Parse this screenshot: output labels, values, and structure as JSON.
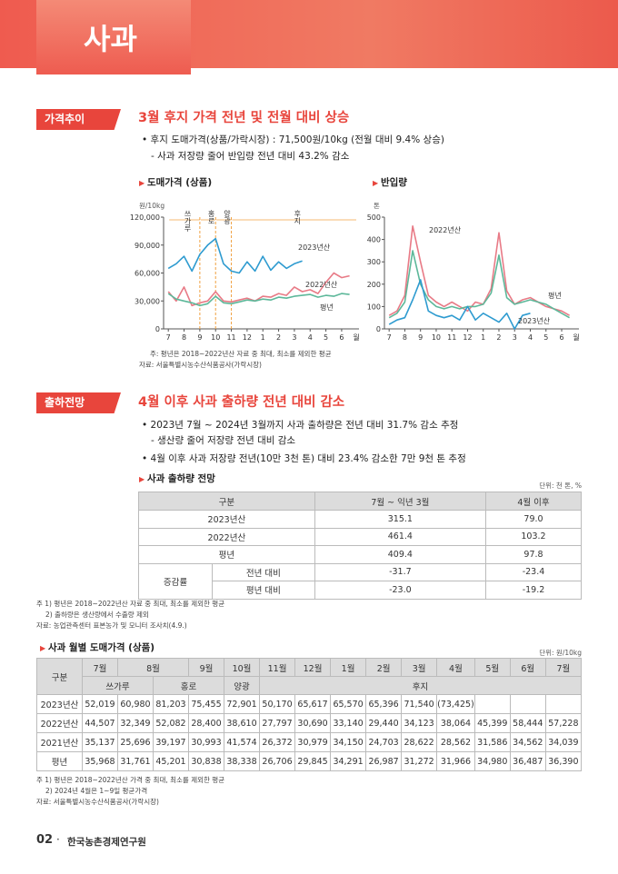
{
  "header": {
    "title": "사과"
  },
  "section1": {
    "badge": "가격추이",
    "heading": "3월 후지 가격 전년 및 전월 대비 상승",
    "bullets": [
      "• 후지 도매가격(상품/가락시장) : 71,500원/10kg (전월 대비 9.4% 상승)",
      "- 사과 저장량 줄어 반입량 전년 대비 43.2% 감소"
    ]
  },
  "charts": [
    {
      "type": "line",
      "title": "도매가격 (상품)",
      "y_unit": "원/10kg",
      "x_unit": "월",
      "x": [
        0,
        0.5,
        1,
        1.5,
        2,
        2.5,
        3,
        3.5,
        4,
        4.5,
        5,
        5.5,
        6,
        6.5,
        7,
        7.5,
        8,
        8.5,
        9,
        9.5,
        10,
        10.5,
        11,
        11.5
      ],
      "xlim": [
        -0.3,
        12.1
      ],
      "xticks": [
        {
          "value": 0,
          "label": "7"
        },
        {
          "value": 1,
          "label": "8"
        },
        {
          "value": 2,
          "label": "9"
        },
        {
          "value": 3,
          "label": "10"
        },
        {
          "value": 4,
          "label": "11"
        },
        {
          "value": 5,
          "label": "12"
        },
        {
          "value": 6,
          "label": "1"
        },
        {
          "value": 7,
          "label": "2"
        },
        {
          "value": 8,
          "label": "3"
        },
        {
          "value": 9,
          "label": "4"
        },
        {
          "value": 10,
          "label": "5"
        },
        {
          "value": 11,
          "label": "6"
        }
      ],
      "ylim": [
        0,
        120000
      ],
      "yticks": [
        0,
        {
          "value": 30000,
          "label": "30,000"
        },
        {
          "value": 60000,
          "label": "60,000"
        },
        {
          "value": 90000,
          "label": "90,000"
        },
        {
          "value": 120000,
          "label": "120,000"
        }
      ],
      "annotations": [
        {
          "label": "쓰가루",
          "from": 0,
          "to": 2
        },
        {
          "label": "홍로",
          "from": 2,
          "to": 3
        },
        {
          "label": "양광",
          "from": 3,
          "to": 4
        },
        {
          "label": "후지",
          "from": 4,
          "to": 12
        }
      ],
      "series": [
        {
          "name": "2023년산",
          "color": "#2e9bd0",
          "values": [
            65000,
            70000,
            78000,
            62000,
            80000,
            90000,
            97000,
            70000,
            62000,
            60000,
            72000,
            62000,
            78000,
            63000,
            72000,
            65000,
            70000,
            73000,
            null,
            null,
            null,
            null,
            null,
            null
          ]
        },
        {
          "name": "2022년산",
          "color": "#e87a86",
          "values": [
            40000,
            30000,
            45000,
            25000,
            28000,
            30000,
            40000,
            30000,
            29000,
            31000,
            33000,
            30000,
            35000,
            34000,
            38000,
            36000,
            45000,
            40000,
            42000,
            38000,
            50000,
            60000,
            55000,
            57000
          ]
        },
        {
          "name": "평년",
          "color": "#5db89a",
          "values": [
            38000,
            32000,
            30000,
            28000,
            25000,
            27000,
            35000,
            28000,
            27000,
            29000,
            31000,
            30000,
            32000,
            31000,
            34000,
            33000,
            35000,
            36000,
            37000,
            34000,
            36000,
            35000,
            38000,
            37000
          ]
        }
      ]
    },
    {
      "type": "line",
      "title": "반입량",
      "y_unit": "톤",
      "x_unit": "월",
      "x": [
        0,
        0.5,
        1,
        1.5,
        2,
        2.5,
        3,
        3.5,
        4,
        4.5,
        5,
        5.5,
        6,
        6.5,
        7,
        7.5,
        8,
        8.5,
        9,
        9.5,
        10,
        10.5,
        11,
        11.5
      ],
      "xlim": [
        -0.3,
        12.1
      ],
      "xticks": [
        {
          "value": 0,
          "label": "7"
        },
        {
          "value": 1,
          "label": "8"
        },
        {
          "value": 2,
          "label": "9"
        },
        {
          "value": 3,
          "label": "10"
        },
        {
          "value": 4,
          "label": "11"
        },
        {
          "value": 5,
          "label": "12"
        },
        {
          "value": 6,
          "label": "1"
        },
        {
          "value": 7,
          "label": "2"
        },
        {
          "value": 8,
          "label": "3"
        },
        {
          "value": 9,
          "label": "4"
        },
        {
          "value": 10,
          "label": "5"
        },
        {
          "value": 11,
          "label": "6"
        }
      ],
      "ylim": [
        0,
        500
      ],
      "yticks": [
        0,
        100,
        200,
        300,
        400,
        500
      ],
      "series": [
        {
          "name": "2022년산",
          "color": "#e87a86",
          "values": [
            60,
            80,
            150,
            460,
            300,
            150,
            120,
            100,
            120,
            100,
            80,
            120,
            110,
            180,
            430,
            170,
            110,
            130,
            140,
            120,
            100,
            90,
            80,
            60
          ]
        },
        {
          "name": "평년",
          "color": "#5db89a",
          "values": [
            50,
            70,
            120,
            350,
            200,
            130,
            100,
            90,
            100,
            90,
            100,
            100,
            110,
            160,
            330,
            140,
            110,
            120,
            130,
            120,
            110,
            90,
            70,
            50
          ]
        },
        {
          "name": "2023년산",
          "color": "#2e9bd0",
          "values": [
            20,
            40,
            50,
            130,
            220,
            80,
            60,
            50,
            60,
            40,
            100,
            40,
            70,
            50,
            30,
            70,
            0,
            60,
            70,
            null,
            null,
            null,
            null,
            null
          ]
        }
      ]
    }
  ],
  "chart_notes": [
    "주: 평년은 2018~2022년산 자료 중 최대, 최소를 제외한 평균",
    "자료: 서울특별시농수산식품공사(가락시장)"
  ],
  "section2": {
    "badge": "출하전망",
    "heading": "4월 이후 사과 출하량 전년 대비 감소",
    "bullets": [
      "• 2023년 7월 ~ 2024년 3월까지 사과 출하량은 전년 대비 31.7% 감소 추정",
      "- 생산량 줄어 저장량 전년 대비 감소",
      "• 4월 이후 사과 저장량 전년(10만 3천 톤) 대비 23.4% 감소한 7만 9천 톤 추정"
    ]
  },
  "table1": {
    "title": "사과 출하량 전망",
    "unit": "단위: 천 톤, %",
    "header": [
      "구분",
      "7월 ~ 익년 3월",
      "4월 이후"
    ],
    "rows": [
      {
        "label": "2023년산",
        "cells": [
          "315.1",
          "79.0"
        ]
      },
      {
        "label": "2022년산",
        "cells": [
          "461.4",
          "103.2"
        ]
      },
      {
        "label": "평년",
        "cells": [
          "409.4",
          "97.8"
        ]
      }
    ],
    "group": {
      "label": "증감률",
      "rows": [
        {
          "label": "전년 대비",
          "cells": [
            "-31.7",
            "-23.4"
          ]
        },
        {
          "label": "평년 대비",
          "cells": [
            "-23.0",
            "-19.2"
          ]
        }
      ]
    },
    "notes": [
      "주 1) 평년은 2018~2022년산 자료 중 최대, 최소를 제외한 평균",
      "2) 출하량은 생산량에서 수출량 제외",
      "자료: 농업관측센터 표본농가 및 모니터 조사치(4.9.)"
    ]
  },
  "table2": {
    "title": "사과 월별 도매가격 (상품)",
    "unit": "단위: 원/10kg",
    "corner": "구분",
    "months": [
      {
        "label": "7월",
        "span": 1
      },
      {
        "label": "8월",
        "span": 2
      },
      {
        "label": "9월",
        "span": 1
      },
      {
        "label": "10월",
        "span": 1
      },
      {
        "label": "11월",
        "span": 1
      },
      {
        "label": "12월",
        "span": 1
      },
      {
        "label": "1월",
        "span": 1
      },
      {
        "label": "2월",
        "span": 1
      },
      {
        "label": "3월",
        "span": 1
      },
      {
        "label": "4월",
        "span": 1
      },
      {
        "label": "5월",
        "span": 1
      },
      {
        "label": "6월",
        "span": 1
      },
      {
        "label": "7월",
        "span": 1
      }
    ],
    "varieties": [
      {
        "label": "쓰가루",
        "span": 2
      },
      {
        "label": "홍로",
        "span": 2
      },
      {
        "label": "양광",
        "span": 1
      },
      {
        "label": "후지",
        "span": 9
      }
    ],
    "rows": [
      {
        "label": "2023년산",
        "cells": [
          "52,019",
          "60,980",
          "81,203",
          "75,455",
          "72,901",
          "50,170",
          "65,617",
          "65,570",
          "65,396",
          "71,540",
          "(73,425)",
          null,
          null,
          null
        ]
      },
      {
        "label": "2022년산",
        "cells": [
          "44,507",
          "32,349",
          "52,082",
          "28,400",
          "38,610",
          "27,797",
          "30,690",
          "33,140",
          "29,440",
          "34,123",
          "38,064",
          "45,399",
          "58,444",
          "57,228"
        ]
      },
      {
        "label": "2021년산",
        "cells": [
          "35,137",
          "25,696",
          "39,197",
          "30,993",
          "41,574",
          "26,372",
          "30,979",
          "34,150",
          "24,703",
          "28,622",
          "28,562",
          "31,586",
          "34,562",
          "34,039"
        ]
      },
      {
        "label": "평년",
        "cells": [
          "35,968",
          "31,761",
          "45,201",
          "30,838",
          "38,338",
          "26,706",
          "29,845",
          "34,291",
          "26,987",
          "31,272",
          "31,966",
          "34,980",
          "36,487",
          "36,390"
        ]
      }
    ],
    "notes": [
      "주 1) 평년은 2018~2022년산 가격 중 최대, 최소를 제외한 평균",
      "2) 2024년 4월은 1~9일 평균가격",
      "자료: 서울특별시농수산식품공사(가락시장)"
    ]
  },
  "footer": {
    "page": "02",
    "org": "한국농촌경제연구원"
  }
}
